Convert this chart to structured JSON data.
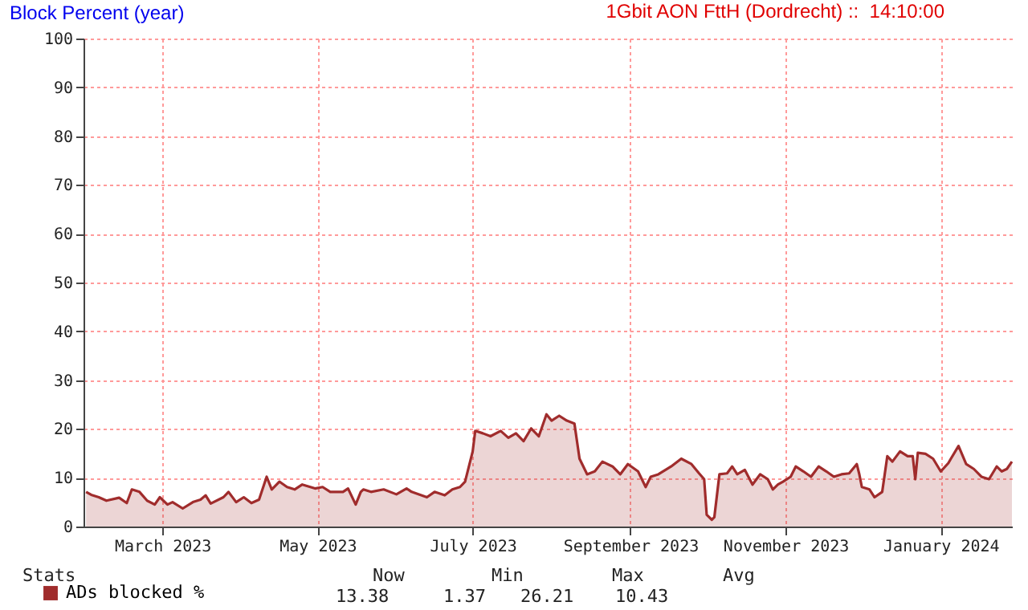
{
  "chart_data": {
    "type": "area",
    "title": "Block Percent (year)",
    "subtitle": "1Gbit AON FttH (Dordrecht) ::  14:10:00",
    "x": [
      "2023-01-30",
      "2023-02-01",
      "2023-02-04",
      "2023-02-07",
      "2023-02-12",
      "2023-02-15",
      "2023-02-17",
      "2023-02-20",
      "2023-02-23",
      "2023-02-26",
      "2023-02-28",
      "2023-03-03",
      "2023-03-05",
      "2023-03-09",
      "2023-03-13",
      "2023-03-16",
      "2023-03-18",
      "2023-03-20",
      "2023-03-25",
      "2023-03-27",
      "2023-03-30",
      "2023-04-02",
      "2023-04-05",
      "2023-04-08",
      "2023-04-11",
      "2023-04-13",
      "2023-04-16",
      "2023-04-19",
      "2023-04-22",
      "2023-04-25",
      "2023-04-30",
      "2023-05-03",
      "2023-05-06",
      "2023-05-11",
      "2023-05-13",
      "2023-05-16",
      "2023-05-18",
      "2023-05-19",
      "2023-05-22",
      "2023-05-27",
      "2023-06-01",
      "2023-06-05",
      "2023-06-07",
      "2023-06-13",
      "2023-06-16",
      "2023-06-20",
      "2023-06-23",
      "2023-06-26",
      "2023-06-28",
      "2023-07-01",
      "2023-07-02",
      "2023-07-05",
      "2023-07-08",
      "2023-07-12",
      "2023-07-15",
      "2023-07-18",
      "2023-07-21",
      "2023-07-24",
      "2023-07-27",
      "2023-07-30",
      "2023-08-01",
      "2023-08-04",
      "2023-08-07",
      "2023-08-10",
      "2023-08-12",
      "2023-08-15",
      "2023-08-18",
      "2023-08-21",
      "2023-08-25",
      "2023-08-28",
      "2023-08-31",
      "2023-09-04",
      "2023-09-07",
      "2023-09-09",
      "2023-09-12",
      "2023-09-17",
      "2023-09-21",
      "2023-09-25",
      "2023-09-28",
      "2023-09-30",
      "2023-10-01",
      "2023-10-03",
      "2023-10-04",
      "2023-10-06",
      "2023-10-09",
      "2023-10-11",
      "2023-10-13",
      "2023-10-16",
      "2023-10-19",
      "2023-10-22",
      "2023-10-25",
      "2023-10-27",
      "2023-10-29",
      "2023-10-31",
      "2023-11-03",
      "2023-11-05",
      "2023-11-08",
      "2023-11-11",
      "2023-11-14",
      "2023-11-17",
      "2023-11-20",
      "2023-11-23",
      "2023-11-26",
      "2023-11-29",
      "2023-11-30",
      "2023-12-01",
      "2023-12-04",
      "2023-12-06",
      "2023-12-09",
      "2023-12-11",
      "2023-12-13",
      "2023-12-16",
      "2023-12-19",
      "2023-12-21",
      "2023-12-22",
      "2023-12-23",
      "2023-12-26",
      "2023-12-29",
      "2024-01-01",
      "2024-01-04",
      "2024-01-05",
      "2024-01-08",
      "2024-01-11",
      "2024-01-14",
      "2024-01-17",
      "2024-01-20",
      "2024-01-23",
      "2024-01-25",
      "2024-01-27",
      "2024-01-29"
    ],
    "series": [
      {
        "name": "ADs blocked %",
        "color": "#a02c2c",
        "values": [
          7.1,
          6.5,
          6.0,
          5.3,
          5.9,
          4.8,
          7.6,
          7.1,
          5.3,
          4.5,
          6.0,
          4.5,
          5.0,
          3.7,
          5.0,
          5.5,
          6.4,
          4.7,
          6.0,
          7.1,
          5.0,
          6.0,
          4.8,
          5.5,
          10.2,
          7.6,
          9.2,
          8.1,
          7.6,
          8.6,
          7.8,
          8.1,
          7.1,
          7.1,
          7.8,
          4.5,
          7.1,
          7.6,
          7.1,
          7.6,
          6.6,
          7.8,
          7.1,
          6.0,
          7.1,
          6.4,
          7.6,
          8.1,
          9.2,
          15.4,
          19.6,
          19.1,
          18.5,
          19.6,
          18.2,
          19.1,
          17.5,
          20.1,
          18.5,
          23.0,
          21.7,
          22.7,
          21.7,
          21.1,
          13.9,
          10.7,
          11.3,
          13.3,
          12.3,
          10.7,
          12.8,
          11.3,
          8.1,
          10.2,
          10.7,
          12.3,
          13.9,
          12.8,
          10.9,
          9.7,
          2.4,
          1.4,
          1.9,
          10.7,
          10.9,
          12.3,
          10.7,
          11.6,
          8.6,
          10.7,
          9.7,
          7.6,
          8.6,
          9.2,
          10.2,
          12.3,
          11.3,
          10.2,
          12.3,
          11.3,
          10.2,
          10.7,
          10.9,
          12.8,
          10.7,
          8.1,
          7.6,
          6.0,
          7.1,
          14.4,
          13.3,
          15.4,
          14.4,
          14.4,
          9.7,
          15.1,
          14.9,
          13.9,
          11.3,
          13.0,
          13.9,
          16.5,
          12.8,
          11.8,
          10.2,
          9.7,
          12.3,
          11.3,
          11.8,
          13.3
        ]
      }
    ],
    "xlim": [
      "2023-01-29",
      "2024-01-29"
    ],
    "xticks": [
      {
        "value": "2023-03-01",
        "label": "March 2023"
      },
      {
        "value": "2023-05-01",
        "label": "May 2023"
      },
      {
        "value": "2023-07-01",
        "label": "July 2023"
      },
      {
        "value": "2023-09-01",
        "label": "September 2023"
      },
      {
        "value": "2023-11-01",
        "label": "November 2023"
      },
      {
        "value": "2024-01-01",
        "label": "January 2024"
      }
    ],
    "ylim": [
      0,
      100
    ],
    "yticks": [
      0,
      10,
      20,
      30,
      40,
      50,
      60,
      70,
      80,
      90,
      100
    ],
    "grid": true,
    "legend": "bottom left",
    "annotations": [
      "Stats",
      "Now",
      "Min",
      "Max",
      "Avg",
      "13.38",
      "1.37",
      "26.21",
      "10.43"
    ]
  }
}
